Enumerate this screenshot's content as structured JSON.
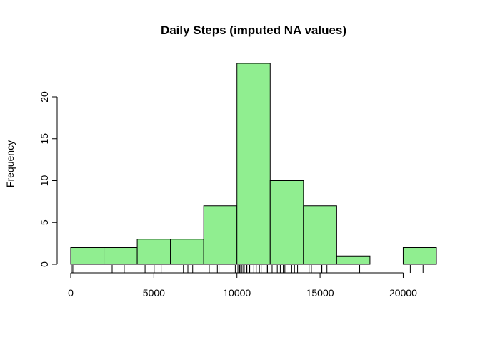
{
  "chart_data": {
    "type": "histogram",
    "title": "Daily Steps (imputed NA values)",
    "xlabel": "",
    "ylabel": "Frequency",
    "bin_edges": [
      0,
      2000,
      4000,
      6000,
      8000,
      10000,
      12000,
      14000,
      16000,
      18000,
      20000,
      22000
    ],
    "counts": [
      2,
      2,
      3,
      3,
      7,
      24,
      10,
      7,
      1,
      0,
      2
    ],
    "xlim": [
      0,
      22000
    ],
    "ylim": [
      0,
      24
    ],
    "x_ticks": [
      0,
      5000,
      10000,
      15000,
      20000
    ],
    "x_tick_labels": [
      "0",
      "5000",
      "10000",
      "15000",
      "20000"
    ],
    "y_ticks": [
      0,
      5,
      10,
      15,
      20
    ],
    "y_tick_labels": [
      "0",
      "5",
      "10",
      "15",
      "20"
    ],
    "rug": [
      41,
      126,
      2492,
      3219,
      4472,
      5018,
      5441,
      6778,
      7047,
      7336,
      8334,
      8821,
      8918,
      9819,
      9900,
      10056,
      10119,
      10139,
      10183,
      10304,
      10395,
      10439,
      10571,
      10600,
      10765,
      10766,
      11015,
      11162,
      11352,
      11458,
      11829,
      11834,
      12116,
      12426,
      12608,
      12787,
      12811,
      12883,
      13294,
      13452,
      13460,
      13646,
      14339,
      14478,
      15084,
      15098,
      15110,
      15414,
      17382,
      20427,
      21194
    ],
    "grid": false,
    "legend": "none",
    "colors": {
      "bar_fill": "#90ee90",
      "bar_stroke": "#000000",
      "axis": "#000000"
    }
  }
}
